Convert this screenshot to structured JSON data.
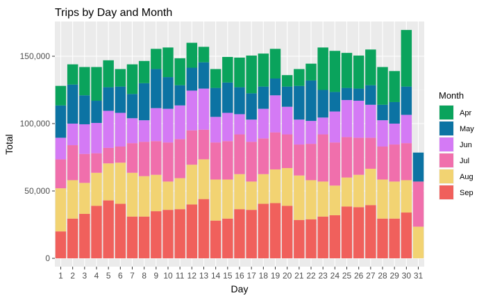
{
  "chart_data": {
    "type": "bar",
    "stacked": true,
    "title": "Trips by Day and Month",
    "xlabel": "Day",
    "ylabel": "Total",
    "ylim": [
      0,
      174000
    ],
    "y_ticks": [
      0,
      50000,
      100000,
      150000
    ],
    "y_tick_labels": [
      "0",
      "50,000",
      "100,000",
      "150,000"
    ],
    "grid": true,
    "legend": {
      "title": "Month",
      "position": "right",
      "entries": [
        "Apr",
        "May",
        "Jun",
        "Jul",
        "Aug",
        "Sep"
      ]
    },
    "categories": [
      "1",
      "2",
      "3",
      "4",
      "5",
      "6",
      "7",
      "8",
      "9",
      "10",
      "11",
      "12",
      "13",
      "14",
      "15",
      "16",
      "17",
      "18",
      "19",
      "20",
      "21",
      "22",
      "23",
      "24",
      "25",
      "26",
      "27",
      "28",
      "29",
      "30",
      "31"
    ],
    "series": [
      {
        "name": "Sep",
        "color": "#f0605c",
        "values": [
          20000,
          29500,
          33000,
          39000,
          43000,
          40500,
          31000,
          31000,
          35000,
          36000,
          36500,
          40000,
          44000,
          28000,
          29500,
          36500,
          36000,
          40500,
          41000,
          39000,
          28500,
          29000,
          31000,
          32000,
          38500,
          38000,
          39500,
          29500,
          29500,
          34000,
          0
        ]
      },
      {
        "name": "Aug",
        "color": "#f2d372",
        "values": [
          32000,
          28500,
          23000,
          24500,
          27500,
          30500,
          32500,
          30000,
          27000,
          21000,
          23000,
          29500,
          29500,
          30500,
          29000,
          26000,
          21000,
          22000,
          25000,
          28000,
          33000,
          29000,
          26000,
          22000,
          21500,
          24000,
          27000,
          29000,
          27500,
          24000,
          23500
        ]
      },
      {
        "name": "Jul",
        "color": "#f06fac",
        "values": [
          21500,
          26000,
          21500,
          14500,
          11500,
          12000,
          22000,
          25500,
          25000,
          29000,
          29000,
          25500,
          22000,
          27500,
          28500,
          29500,
          29500,
          26500,
          27500,
          25000,
          23000,
          27000,
          35000,
          32000,
          30000,
          27500,
          23000,
          24500,
          27500,
          27500,
          33500
        ]
      },
      {
        "name": "Jun",
        "color": "#d47af5",
        "values": [
          16000,
          16000,
          22000,
          22500,
          27500,
          25000,
          18500,
          16000,
          24500,
          25000,
          25000,
          29500,
          30500,
          19000,
          21000,
          15000,
          16500,
          22000,
          27500,
          20500,
          18500,
          17000,
          12500,
          23000,
          27500,
          27500,
          24500,
          19500,
          15500,
          21000,
          0
        ]
      },
      {
        "name": "May",
        "color": "#0c73a3",
        "values": [
          24000,
          29000,
          21500,
          16500,
          17500,
          19500,
          18000,
          27500,
          29000,
          23500,
          15000,
          17000,
          19500,
          21500,
          22500,
          20000,
          19500,
          16500,
          12500,
          15000,
          25000,
          30000,
          20500,
          14500,
          9000,
          9000,
          14500,
          11500,
          16000,
          21000,
          21500
        ]
      },
      {
        "name": "Apr",
        "color": "#0aa35c",
        "values": [
          14500,
          15000,
          21000,
          25000,
          20000,
          13000,
          22000,
          16500,
          15000,
          22000,
          20000,
          18500,
          11500,
          14000,
          19000,
          22000,
          28000,
          24500,
          22000,
          8500,
          12500,
          12500,
          31500,
          30500,
          26000,
          24500,
          26500,
          28000,
          23000,
          42000,
          0
        ]
      }
    ]
  }
}
